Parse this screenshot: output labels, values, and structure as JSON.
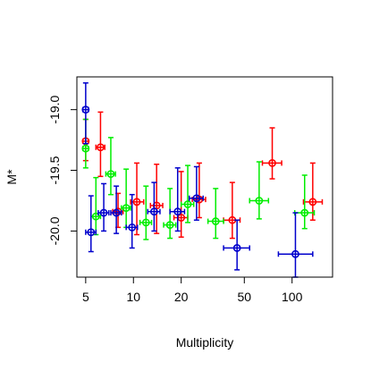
{
  "chart_data": {
    "type": "scatter",
    "title": "",
    "xlabel": "Multiplicity",
    "ylabel": "M*",
    "x_scale": "log",
    "xlim": [
      4.4,
      180
    ],
    "ylim": [
      -20.38,
      -18.73
    ],
    "y_reversed": true,
    "x_ticks": [
      5,
      10,
      20,
      50,
      100
    ],
    "x_tick_labels": [
      "5",
      "10",
      "20",
      "50",
      "100"
    ],
    "y_ticks": [
      -19.0,
      -19.5,
      -20.0
    ],
    "y_tick_labels": [
      "-19.0",
      "-19.5",
      "-20.0"
    ],
    "grid": false,
    "legend": "none",
    "series": [
      {
        "color": "#ff0000",
        "points": [
          {
            "x": 5.0,
            "y": -19.26,
            "y_lo": -19.42,
            "y_hi": -19.08,
            "x_lo": 4.8,
            "x_hi": 5.2
          },
          {
            "x": 6.2,
            "y": -19.31,
            "y_lo": -19.55,
            "y_hi": -19.02,
            "x_lo": 5.8,
            "x_hi": 6.6
          },
          {
            "x": 8.0,
            "y": -19.84,
            "y_lo": -19.97,
            "y_hi": -19.69,
            "x_lo": 7.4,
            "x_hi": 8.6
          },
          {
            "x": 10.5,
            "y": -19.76,
            "y_lo": -20.03,
            "y_hi": -19.44,
            "x_lo": 9.6,
            "x_hi": 11.6
          },
          {
            "x": 14.0,
            "y": -19.79,
            "y_lo": -20.02,
            "y_hi": -19.45,
            "x_lo": 12.8,
            "x_hi": 15.3
          },
          {
            "x": 20.0,
            "y": -19.89,
            "y_lo": -20.05,
            "y_hi": -19.51,
            "x_lo": 18.0,
            "x_hi": 22.0
          },
          {
            "x": 26.0,
            "y": -19.74,
            "y_lo": -19.89,
            "y_hi": -19.44,
            "x_lo": 23.5,
            "x_hi": 28.5
          },
          {
            "x": 42.0,
            "y": -19.91,
            "y_lo": -20.06,
            "y_hi": -19.6,
            "x_lo": 37.0,
            "x_hi": 47.0
          },
          {
            "x": 75.0,
            "y": -19.44,
            "y_lo": -19.57,
            "y_hi": -19.15,
            "x_lo": 65.0,
            "x_hi": 86.0
          },
          {
            "x": 135.0,
            "y": -19.76,
            "y_lo": -19.91,
            "y_hi": -19.44,
            "x_lo": 118.0,
            "x_hi": 155.0
          }
        ]
      },
      {
        "color": "#00ee00",
        "points": [
          {
            "x": 5.0,
            "y": -19.32,
            "y_lo": -19.48,
            "y_hi": -19.08,
            "x_lo": 4.8,
            "x_hi": 5.2
          },
          {
            "x": 5.8,
            "y": -19.88,
            "y_lo": -20.03,
            "y_hi": -19.56,
            "x_lo": 5.4,
            "x_hi": 6.2
          },
          {
            "x": 7.2,
            "y": -19.53,
            "y_lo": -19.7,
            "y_hi": -19.23,
            "x_lo": 6.7,
            "x_hi": 7.7
          },
          {
            "x": 9.0,
            "y": -19.81,
            "y_lo": -19.97,
            "y_hi": -19.49,
            "x_lo": 8.4,
            "x_hi": 9.6
          },
          {
            "x": 12.0,
            "y": -19.93,
            "y_lo": -20.07,
            "y_hi": -19.63,
            "x_lo": 11.0,
            "x_hi": 13.0
          },
          {
            "x": 17.0,
            "y": -19.95,
            "y_lo": -20.06,
            "y_hi": -19.65,
            "x_lo": 15.5,
            "x_hi": 18.5
          },
          {
            "x": 22.0,
            "y": -19.78,
            "y_lo": -19.93,
            "y_hi": -19.46,
            "x_lo": 20.0,
            "x_hi": 24.0
          },
          {
            "x": 33.0,
            "y": -19.92,
            "y_lo": -20.06,
            "y_hi": -19.65,
            "x_lo": 29.5,
            "x_hi": 37.0
          },
          {
            "x": 62.0,
            "y": -19.75,
            "y_lo": -19.9,
            "y_hi": -19.43,
            "x_lo": 54.0,
            "x_hi": 71.0
          },
          {
            "x": 120.0,
            "y": -19.85,
            "y_lo": -19.98,
            "y_hi": -19.54,
            "x_lo": 104.0,
            "x_hi": 138.0
          }
        ]
      },
      {
        "color": "#0000cc",
        "points": [
          {
            "x": 5.0,
            "y": -19.0,
            "y_lo": -19.28,
            "y_hi": -18.78,
            "x_lo": 4.8,
            "x_hi": 5.2
          },
          {
            "x": 5.4,
            "y": -20.01,
            "y_lo": -20.17,
            "y_hi": -19.71,
            "x_lo": 5.0,
            "x_hi": 5.8
          },
          {
            "x": 6.5,
            "y": -19.85,
            "y_lo": -20.0,
            "y_hi": -19.61,
            "x_lo": 6.0,
            "x_hi": 7.0
          },
          {
            "x": 7.8,
            "y": -19.85,
            "y_lo": -20.02,
            "y_hi": -19.63,
            "x_lo": 7.2,
            "x_hi": 8.4
          },
          {
            "x": 9.8,
            "y": -19.97,
            "y_lo": -20.14,
            "y_hi": -19.7,
            "x_lo": 9.0,
            "x_hi": 10.6
          },
          {
            "x": 13.5,
            "y": -19.84,
            "y_lo": -20.0,
            "y_hi": -19.6,
            "x_lo": 12.3,
            "x_hi": 14.7
          },
          {
            "x": 19.0,
            "y": -19.84,
            "y_lo": -20.0,
            "y_hi": -19.48,
            "x_lo": 17.0,
            "x_hi": 21.0
          },
          {
            "x": 25.0,
            "y": -19.73,
            "y_lo": -19.91,
            "y_hi": -19.47,
            "x_lo": 22.5,
            "x_hi": 27.5
          },
          {
            "x": 45.0,
            "y": -20.14,
            "y_lo": -20.32,
            "y_hi": -19.91,
            "x_lo": 37.0,
            "x_hi": 54.0
          },
          {
            "x": 105.0,
            "y": -20.19,
            "y_lo": -20.38,
            "y_hi": -19.85,
            "x_lo": 82.0,
            "x_hi": 135.0
          }
        ]
      }
    ]
  }
}
